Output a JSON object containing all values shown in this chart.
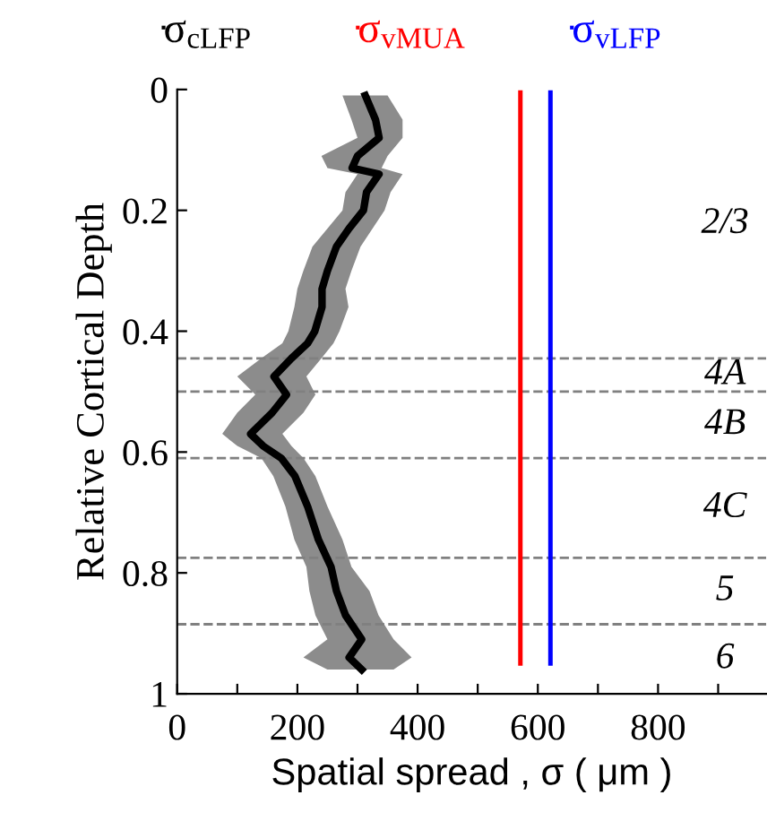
{
  "chart_data": {
    "type": "line",
    "orientation": "horizontal",
    "xlabel": "Spatial spread , σ ( μm )",
    "ylabel": "Relative Cortical Depth",
    "xlim": [
      0,
      980
    ],
    "xticks": [
      0,
      {
        "value": 100,
        "label": null
      },
      200,
      {
        "value": 300,
        "label": null
      },
      400,
      {
        "value": 500,
        "label": null
      },
      600,
      {
        "value": 700,
        "label": null
      },
      800,
      {
        "value": 900,
        "label": null
      }
    ],
    "ylim": [
      1,
      0
    ],
    "yticks": [
      0,
      0.2,
      0.4,
      0.6,
      0.8,
      1
    ],
    "legend": "top",
    "line_style": "solid",
    "marker": "none",
    "series": [
      {
        "name": "σ$_{cLFP}$",
        "color": "#000000",
        "x": [
          0.01,
          0.05,
          0.08,
          0.11,
          0.13,
          0.14,
          0.17,
          0.2,
          0.23,
          0.26,
          0.3,
          0.33,
          0.36,
          0.4,
          0.42,
          0.445,
          0.475,
          0.505,
          0.535,
          0.57,
          0.59,
          0.61,
          0.64,
          0.69,
          0.745,
          0.79,
          0.83,
          0.87,
          0.91,
          0.94,
          0.96
        ],
        "values": [
          313,
          330,
          336,
          300,
          291,
          336,
          315,
          310,
          286,
          265,
          250,
          241,
          241,
          229,
          217,
          190,
          161,
          182,
          158,
          122,
          143,
          173,
          196,
          217,
          235,
          256,
          265,
          280,
          307,
          286,
          307
        ],
        "lower": [
          275,
          290,
          300,
          240,
          250,
          300,
          280,
          275,
          250,
          225,
          210,
          200,
          195,
          185,
          175,
          140,
          100,
          130,
          100,
          75,
          100,
          140,
          160,
          180,
          195,
          215,
          220,
          230,
          250,
          210,
          250
        ],
        "upper": [
          350,
          375,
          375,
          350,
          340,
          375,
          355,
          345,
          325,
          305,
          290,
          280,
          285,
          270,
          260,
          240,
          215,
          230,
          210,
          175,
          190,
          210,
          230,
          250,
          275,
          290,
          320,
          335,
          360,
          390,
          360
        ]
      },
      {
        "name": "σ$_{vMUA}$",
        "color": "#ff0000",
        "x": [
          0.005,
          0.95
        ],
        "values": [
          571,
          571
        ]
      },
      {
        "name": "σ$_{vLFP}$",
        "color": "#0000ff",
        "x": [
          0.005,
          0.95
        ],
        "values": [
          621,
          621
        ]
      }
    ],
    "ref_lines": [
      {
        "axis": "y",
        "value": 0.445,
        "color": "#808080",
        "line_style": "dashed"
      },
      {
        "axis": "y",
        "value": 0.5,
        "color": "#808080",
        "line_style": "dashed"
      },
      {
        "axis": "y",
        "value": 0.61,
        "color": "#808080",
        "line_style": "dashed"
      },
      {
        "axis": "y",
        "value": 0.775,
        "color": "#808080",
        "line_style": "dashed"
      },
      {
        "axis": "y",
        "value": 0.885,
        "color": "#808080",
        "line_style": "dashed"
      }
    ],
    "annotations": [
      "2/3",
      "4A",
      "4B",
      "4C",
      "5",
      "6"
    ]
  }
}
